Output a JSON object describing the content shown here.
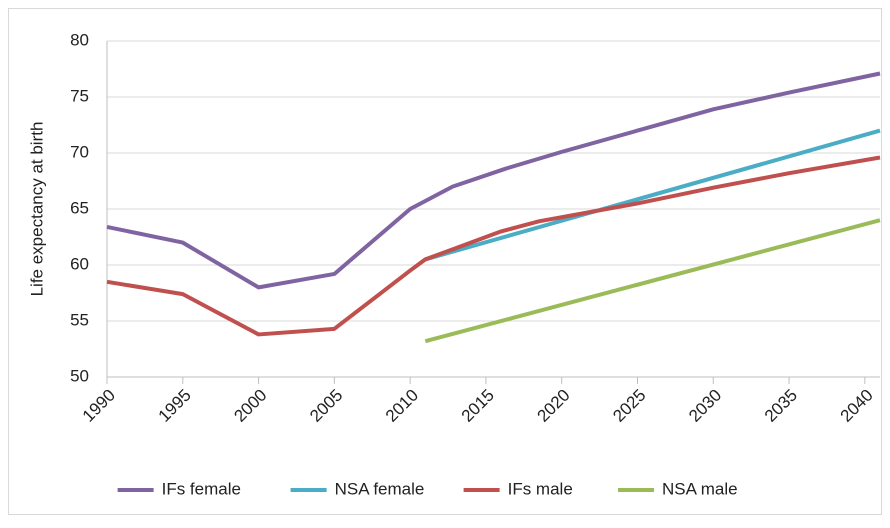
{
  "chart_data": {
    "type": "line",
    "ylabel": "Life expectancy at birth",
    "xlim": [
      1990,
      2041
    ],
    "xticks": [
      1990,
      1995,
      2000,
      2005,
      2010,
      2015,
      2020,
      2025,
      2030,
      2035,
      2040
    ],
    "ylim": [
      50,
      80
    ],
    "yticks": [
      50,
      55,
      60,
      65,
      70,
      75,
      80
    ],
    "grid": true,
    "legend": "bottom",
    "series": [
      {
        "name": "IFs female",
        "color": "#8064a2",
        "x": [
          1990,
          1995,
          2000,
          2005,
          2010,
          2012.8,
          2016.3,
          2020,
          2025,
          2030,
          2035,
          2041
        ],
        "values": [
          63.4,
          62,
          58,
          59.2,
          65,
          67,
          68.6,
          70.1,
          72,
          73.9,
          75.4,
          77.1
        ]
      },
      {
        "name": "NSA female",
        "color": "#4bacc6",
        "x": [
          2011,
          2041
        ],
        "values": [
          60.5,
          72
        ]
      },
      {
        "name": "IFs male",
        "color": "#c0504d",
        "x": [
          1990,
          1995,
          2000,
          2005,
          2010,
          2011,
          2013,
          2016,
          2018.5,
          2025,
          2030,
          2035,
          2041
        ],
        "values": [
          58.5,
          57.4,
          53.8,
          54.3,
          59.5,
          60.5,
          61.5,
          63,
          63.9,
          65.5,
          66.9,
          68.2,
          69.6
        ]
      },
      {
        "name": "NSA male",
        "color": "#9bbb59",
        "x": [
          2011,
          2041
        ],
        "values": [
          53.2,
          64
        ]
      }
    ]
  }
}
